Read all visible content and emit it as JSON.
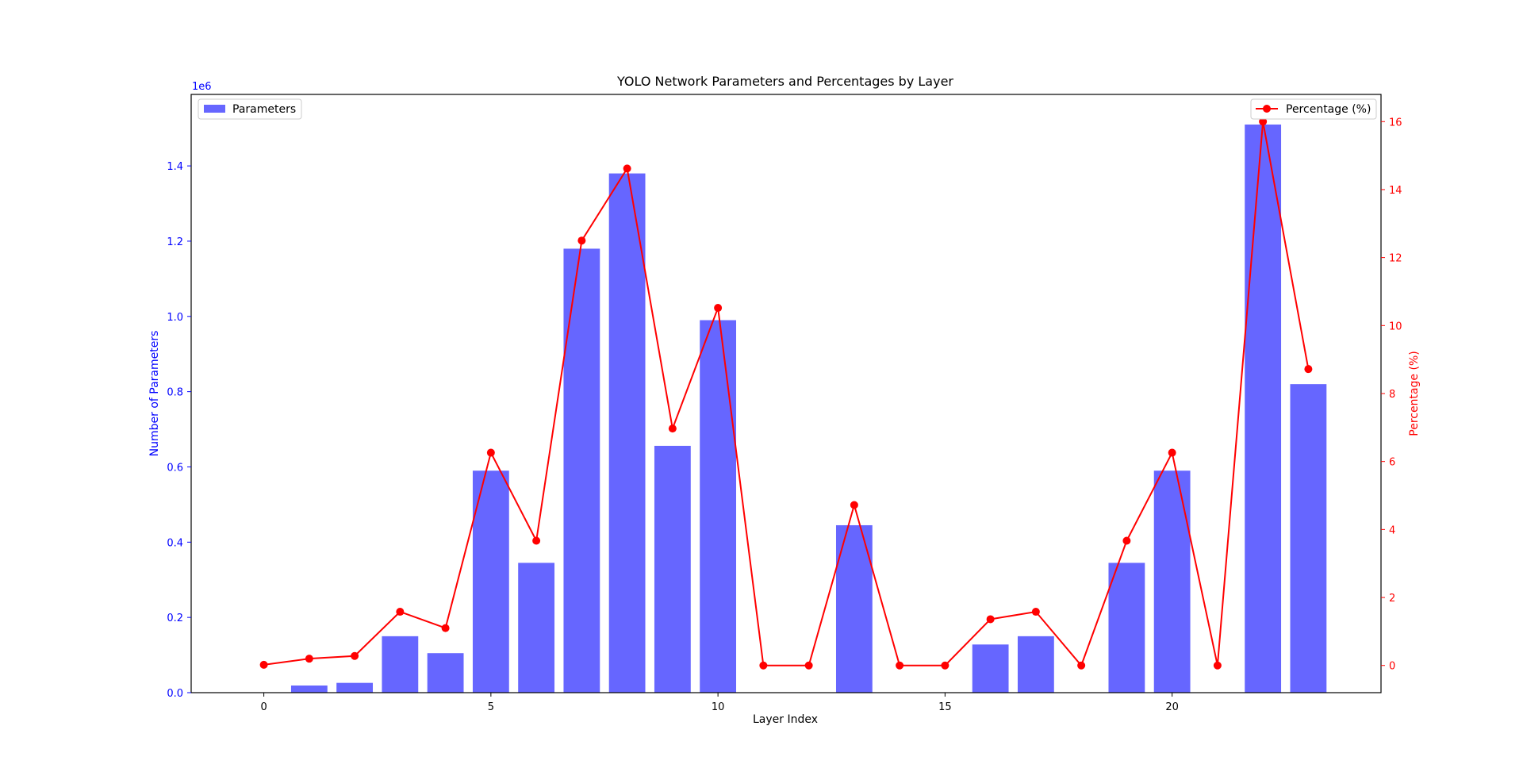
{
  "chart_data": {
    "type": "bar",
    "title": "YOLO Network Parameters and Percentages by Layer",
    "xlabel": "Layer Index",
    "ylabel_left": "Number of Parameters",
    "ylabel_right": "Percentage (%)",
    "left_offset_text": "1e6",
    "x": [
      0,
      1,
      2,
      3,
      4,
      5,
      6,
      7,
      8,
      9,
      10,
      11,
      12,
      13,
      14,
      15,
      16,
      17,
      18,
      19,
      20,
      21,
      22,
      23
    ],
    "x_ticks": [
      0,
      5,
      10,
      15,
      20
    ],
    "xlim": [
      -1.6,
      24.6
    ],
    "ylim_left": [
      0,
      1.59
    ],
    "ylim_right": [
      -0.8,
      16.8
    ],
    "left_ticks": [
      "0.0",
      "0.2",
      "0.4",
      "0.6",
      "0.8",
      "1.0",
      "1.2",
      "1.4"
    ],
    "left_tick_values": [
      0,
      0.2,
      0.4,
      0.6,
      0.8,
      1.0,
      1.2,
      1.4
    ],
    "right_ticks": [
      "0",
      "2",
      "4",
      "6",
      "8",
      "10",
      "12",
      "14",
      "16"
    ],
    "right_tick_values": [
      0,
      2,
      4,
      6,
      8,
      10,
      12,
      14,
      16
    ],
    "series": [
      {
        "name": "Parameters",
        "kind": "bar",
        "axis": "left",
        "color": "#6666ff",
        "values": [
          0,
          0.019,
          0.026,
          0.15,
          0.105,
          0.59,
          0.345,
          1.18,
          1.38,
          0.656,
          0.99,
          0,
          0,
          0.445,
          0,
          0,
          0.128,
          0.15,
          0,
          0.345,
          0.59,
          0,
          1.51,
          0.82
        ]
      },
      {
        "name": "Percentage (%)",
        "kind": "line",
        "axis": "right",
        "color": "#ff0000",
        "values": [
          0.02,
          0.2,
          0.28,
          1.58,
          1.1,
          6.26,
          3.67,
          12.5,
          14.62,
          6.97,
          10.52,
          0,
          0,
          4.72,
          0,
          0,
          1.36,
          1.58,
          0,
          3.67,
          6.26,
          0,
          16.0,
          8.72
        ]
      }
    ],
    "left_axis_color": "#0000ff",
    "right_axis_color": "#ff0000",
    "legend_left": "top-left",
    "legend_right": "top-right",
    "grid": false
  }
}
